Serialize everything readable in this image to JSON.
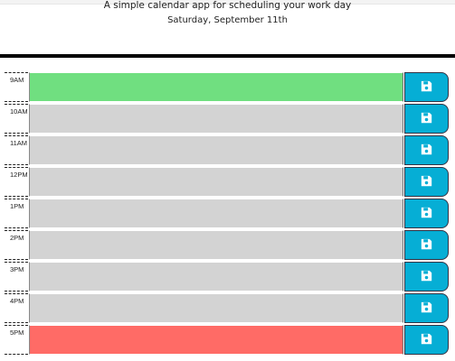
{
  "header": {
    "subtitle": "A simple calendar app for scheduling your work day",
    "current_day": "Saturday, September 11th"
  },
  "colors": {
    "past": "#d3d3d3",
    "present": "#70df80",
    "future": "#ff6b66",
    "save_button": "#06aed5"
  },
  "timeblocks": [
    {
      "hour": "9AM",
      "status": "present",
      "text": "",
      "save_icon": "floppy-disk-icon"
    },
    {
      "hour": "10AM",
      "status": "past",
      "text": "",
      "save_icon": "floppy-disk-icon"
    },
    {
      "hour": "11AM",
      "status": "past",
      "text": "",
      "save_icon": "floppy-disk-icon"
    },
    {
      "hour": "12PM",
      "status": "past",
      "text": "",
      "save_icon": "floppy-disk-icon"
    },
    {
      "hour": "1PM",
      "status": "past",
      "text": "",
      "save_icon": "floppy-disk-icon"
    },
    {
      "hour": "2PM",
      "status": "past",
      "text": "",
      "save_icon": "floppy-disk-icon"
    },
    {
      "hour": "3PM",
      "status": "past",
      "text": "",
      "save_icon": "floppy-disk-icon"
    },
    {
      "hour": "4PM",
      "status": "past",
      "text": "",
      "save_icon": "floppy-disk-icon"
    },
    {
      "hour": "5PM",
      "status": "future",
      "text": "",
      "save_icon": "floppy-disk-icon"
    }
  ]
}
